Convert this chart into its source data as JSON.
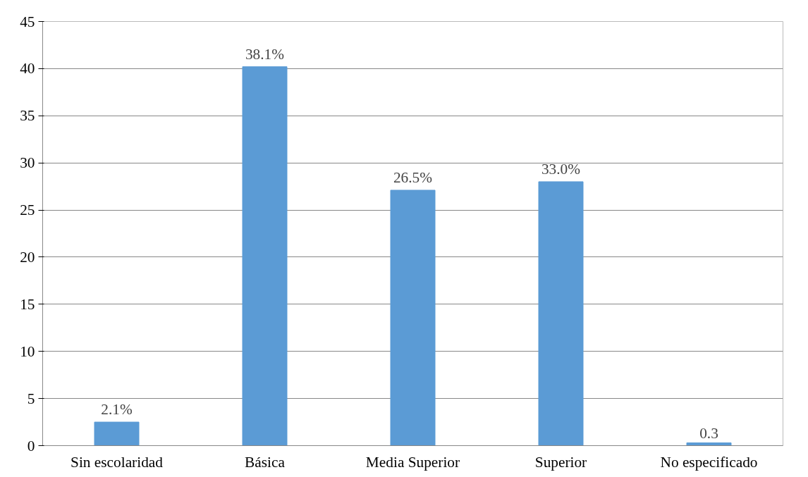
{
  "chart_data": {
    "type": "bar",
    "categories": [
      "Sin escolaridad",
      "Básica",
      "Media Superior",
      "Superior",
      "No especificado"
    ],
    "values": [
      2.5,
      40.2,
      27.1,
      28.0,
      0.3
    ],
    "annotations": [
      {
        "text": "2.1%",
        "x": "Sin escolaridad",
        "y": 2.5
      },
      {
        "text": "38.1%",
        "x": "Básica",
        "y": 40.2
      },
      {
        "text": "26.5%",
        "x": "Media Superior",
        "y": 27.1
      },
      {
        "text": "33.0%",
        "x": "Superior",
        "y": 28.0
      },
      {
        "text": "0.3",
        "x": "No especificado",
        "y": 0.3
      }
    ],
    "color": "#5b9bd5",
    "ylim": [
      0,
      45
    ],
    "yticks": [
      0,
      5,
      10,
      15,
      20,
      25,
      30,
      35,
      40,
      45
    ],
    "grid": "y"
  }
}
